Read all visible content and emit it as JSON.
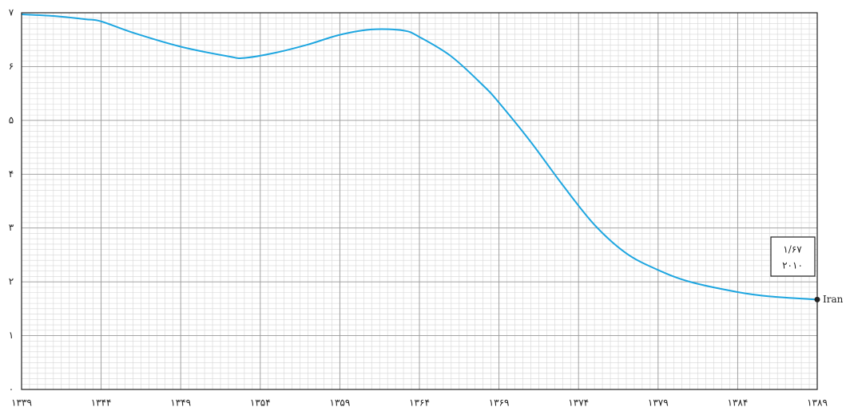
{
  "chart_data": {
    "type": "line",
    "x": [
      1339,
      1341,
      1343,
      1344,
      1346,
      1349,
      1352,
      1353,
      1355,
      1357,
      1359,
      1361,
      1363,
      1364,
      1366,
      1368,
      1369,
      1371,
      1373,
      1375,
      1377,
      1379,
      1381,
      1384,
      1386,
      1389
    ],
    "series": [
      {
        "name": "Iran",
        "color": "#1ea6e0",
        "values": [
          6.97,
          6.94,
          6.88,
          6.84,
          6.63,
          6.37,
          6.19,
          6.16,
          6.26,
          6.41,
          6.59,
          6.69,
          6.67,
          6.55,
          6.19,
          5.65,
          5.33,
          4.6,
          3.8,
          3.06,
          2.53,
          2.22,
          2.0,
          1.81,
          1.73,
          1.67
        ]
      }
    ],
    "xlim": [
      1339,
      1389
    ],
    "xticks": [
      {
        "value": 1339,
        "label": "۱۳۳۹"
      },
      {
        "value": 1344,
        "label": "۱۳۴۴"
      },
      {
        "value": 1349,
        "label": "۱۳۴۹"
      },
      {
        "value": 1354,
        "label": "۱۳۵۴"
      },
      {
        "value": 1359,
        "label": "۱۳۵۹"
      },
      {
        "value": 1364,
        "label": "۱۳۶۴"
      },
      {
        "value": 1369,
        "label": "۱۳۶۹"
      },
      {
        "value": 1374,
        "label": "۱۳۷۴"
      },
      {
        "value": 1379,
        "label": "۱۳۷۹"
      },
      {
        "value": 1384,
        "label": "۱۳۸۴"
      },
      {
        "value": 1389,
        "label": "۱۳۸۹"
      }
    ],
    "ylim": [
      0,
      7
    ],
    "yticks": [
      {
        "value": 0,
        "label": "۰"
      },
      {
        "value": 1,
        "label": "۱"
      },
      {
        "value": 2,
        "label": "۲"
      },
      {
        "value": 3,
        "label": "۳"
      },
      {
        "value": 4,
        "label": "۴"
      },
      {
        "value": 5,
        "label": "۵"
      },
      {
        "value": 6,
        "label": "۶"
      },
      {
        "value": 7,
        "label": "۷"
      }
    ],
    "grid": true,
    "annotation": [
      "۱/۶۷",
      "۲۰۱۰"
    ]
  }
}
